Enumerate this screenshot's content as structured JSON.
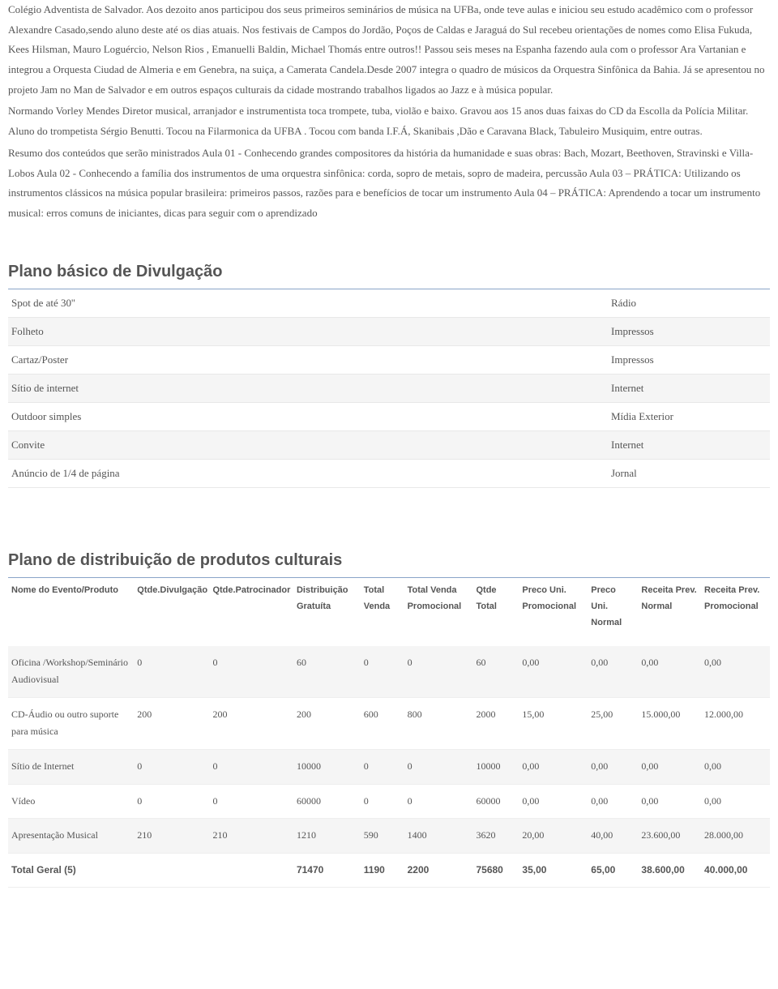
{
  "paragraphs": [
    "Colégio Adventista de Salvador. Aos dezoito anos participou dos seus primeiros seminários de música na UFBa, onde teve aulas e iniciou seu estudo acadêmico com o professor Alexandre Casado,sendo aluno deste até os dias atuais. Nos festivais de Campos do Jordão, Poços de Caldas e Jaraguá do Sul recebeu orientações de nomes como Elisa Fukuda, Kees Hilsman, Mauro Loguércio, Nelson Rios , Emanuelli Baldin, Michael Thomás entre outros!! Passou seis meses na Espanha fazendo aula com o professor Ara Vartanian e integrou a Orquesta Ciudad de Almeria e em Genebra, na suiça, a Camerata Candela.Desde 2007 integra o quadro de músicos da Orquestra Sinfônica da Bahia. Já se apresentou no projeto Jam no Man de Salvador e em outros espaços culturais da cidade mostrando trabalhos ligados ao Jazz e à música popular.",
    "Normando Vorley Mendes Diretor musical, arranjador e instrumentista toca trompete, tuba, violão e baixo. Gravou aos 15 anos duas faixas do CD da Escolla da Polícia Militar. Aluno do trompetista Sérgio Benutti. Tocou na Filarmonica da UFBA . Tocou com banda I.F.Á, Skanibais ,Dão e Caravana Black, Tabuleiro Musiquim, entre outras.",
    "Resumo dos conteúdos que serão ministrados Aula 01 - Conhecendo grandes compositores da história da humanidade e suas obras: Bach, Mozart, Beethoven, Stravinski e Villa-Lobos Aula 02 - Conhecendo a família dos instrumentos de uma orquestra sinfônica: corda, sopro de metais, sopro de madeira, percussão Aula 03 – PRÁTICA: Utilizando os instrumentos clássicos na música popular brasileira: primeiros passos, razões para e benefícios de tocar um instrumento Aula 04 – PRÁTICA: Aprendendo a tocar um instrumento musical: erros comuns de iniciantes, dicas para seguir com o aprendizado"
  ],
  "divulgacao": {
    "title": "Plano básico de Divulgação",
    "rows": [
      {
        "item": "Spot de até 30''",
        "tipo": "Rádio"
      },
      {
        "item": "Folheto",
        "tipo": "Impressos"
      },
      {
        "item": "Cartaz/Poster",
        "tipo": "Impressos"
      },
      {
        "item": "Sítio de internet",
        "tipo": "Internet"
      },
      {
        "item": "Outdoor simples",
        "tipo": "Mídia Exterior"
      },
      {
        "item": "Convite",
        "tipo": "Internet"
      },
      {
        "item": "Anúncio de 1/4 de página",
        "tipo": "Jornal"
      }
    ]
  },
  "distribuicao": {
    "title": "Plano de distribuição de produtos culturais",
    "headers": [
      "Nome do Evento/Produto",
      "Qtde.Divulgação",
      "Qtde.Patrocinador",
      "Distribuição Gratuíta",
      "Total Venda",
      "Total Venda Promocional",
      "Qtde Total",
      "Preco Uni. Promocional",
      "Preco Uni. Normal",
      "Receita Prev. Normal",
      "Receita Prev. Promocional"
    ],
    "col_widths": [
      "150",
      "90",
      "100",
      "80",
      "52",
      "82",
      "55",
      "82",
      "60",
      "75",
      "82"
    ],
    "rows": [
      [
        "Oficina /Workshop/Seminário Audiovisual",
        "0",
        "0",
        "60",
        "0",
        "0",
        "60",
        "0,00",
        "0,00",
        "0,00",
        "0,00"
      ],
      [
        "CD-Áudio ou outro suporte para música",
        "200",
        "200",
        "200",
        "600",
        "800",
        "2000",
        "15,00",
        "25,00",
        "15.000,00",
        "12.000,00"
      ],
      [
        "Sítio de Internet",
        "0",
        "0",
        "10000",
        "0",
        "0",
        "10000",
        "0,00",
        "0,00",
        "0,00",
        "0,00"
      ],
      [
        "Vídeo",
        "0",
        "0",
        "60000",
        "0",
        "0",
        "60000",
        "0,00",
        "0,00",
        "0,00",
        "0,00"
      ],
      [
        "Apresentação Musical",
        "210",
        "210",
        "1210",
        "590",
        "1400",
        "3620",
        "20,00",
        "40,00",
        "23.600,00",
        "28.000,00"
      ]
    ],
    "total": [
      "Total Geral (5)",
      "",
      "",
      "71470",
      "1190",
      "2200",
      "75680",
      "35,00",
      "65,00",
      "38.600,00",
      "40.000,00"
    ]
  },
  "colors": {
    "text": "#555555",
    "rule": "#8aa4c8",
    "stripe": "#f5f5f5",
    "border": "#e8e8e8"
  }
}
